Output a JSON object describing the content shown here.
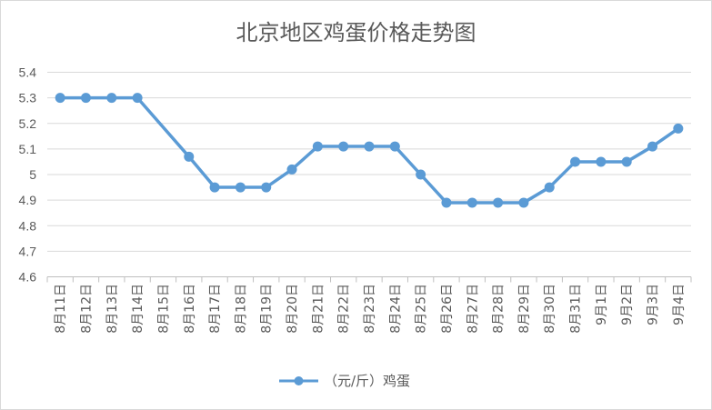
{
  "chart_data": {
    "type": "line",
    "title": "北京地区鸡蛋价格走势图",
    "xlabel": "",
    "ylabel": "",
    "ylim": [
      4.6,
      5.4
    ],
    "yticks": [
      "5.4",
      "5.3",
      "5.2",
      "5.1",
      "5",
      "4.9",
      "4.8",
      "4.7",
      "4.6"
    ],
    "grid": true,
    "legend_position": "bottom",
    "categories": [
      "8月11日",
      "8月12日",
      "8月13日",
      "8月14日",
      "8月15日",
      "8月16日",
      "8月17日",
      "8月18日",
      "8月19日",
      "8月20日",
      "8月21日",
      "8月22日",
      "8月23日",
      "8月24日",
      "8月25日",
      "8月26日",
      "8月27日",
      "8月28日",
      "8月29日",
      "8月30日",
      "8月31日",
      "9月1日",
      "9月2日",
      "9月3日",
      "9月4日"
    ],
    "series": [
      {
        "name": "（元/斤）鸡蛋",
        "color": "#5b9bd5",
        "values": [
          5.3,
          5.3,
          5.3,
          5.3,
          null,
          5.07,
          4.95,
          4.95,
          4.95,
          5.02,
          5.11,
          5.11,
          5.11,
          5.11,
          5.0,
          4.89,
          4.89,
          4.89,
          4.89,
          4.95,
          5.05,
          5.05,
          5.05,
          5.11,
          5.18
        ]
      }
    ]
  }
}
